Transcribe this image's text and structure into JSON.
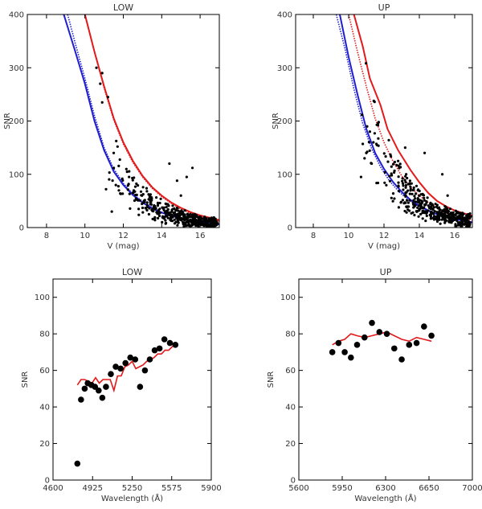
{
  "chart_data": [
    {
      "type": "scatter",
      "title": "LOW",
      "xlabel": "V (mag)",
      "ylabel": "SNR",
      "xlim": [
        7,
        17
      ],
      "ylim": [
        0,
        400
      ],
      "xticks": [
        8,
        10,
        12,
        14,
        16
      ],
      "yticks": [
        0,
        100,
        200,
        300,
        400
      ],
      "scatter_seed": 1,
      "scatter_dense": {
        "xrange": [
          11.0,
          16.9
        ],
        "n": 430
      },
      "scatter_sparse": [
        [
          10.6,
          300
        ],
        [
          10.8,
          270
        ],
        [
          10.9,
          290
        ],
        [
          11.2,
          245
        ],
        [
          10.9,
          235
        ],
        [
          11.7,
          152
        ],
        [
          11.5,
          140
        ],
        [
          12.3,
          95
        ],
        [
          11.1,
          72
        ],
        [
          11.4,
          30
        ],
        [
          15.6,
          112
        ],
        [
          14.4,
          120
        ],
        [
          15.3,
          95
        ],
        [
          14.8,
          88
        ],
        [
          15.0,
          60
        ]
      ],
      "lines": [
        {
          "color": "#e31a1c",
          "style": "solid",
          "points": [
            [
              10.0,
              400
            ],
            [
              10.5,
              330
            ],
            [
              11.0,
              265
            ],
            [
              11.5,
              205
            ],
            [
              12.0,
              160
            ],
            [
              12.5,
              125
            ],
            [
              13.0,
              97
            ],
            [
              13.5,
              76
            ],
            [
              14.0,
              60
            ],
            [
              14.5,
              47
            ],
            [
              15.0,
              37
            ],
            [
              15.5,
              29
            ],
            [
              16.0,
              23
            ],
            [
              17.0,
              14
            ]
          ]
        },
        {
          "color": "#e31a1c",
          "style": "dotted",
          "points": [
            [
              10.0,
              400
            ],
            [
              10.5,
              330
            ],
            [
              11.0,
              262
            ],
            [
              11.5,
              202
            ],
            [
              12.0,
              157
            ],
            [
              12.5,
              122
            ],
            [
              13.0,
              95
            ],
            [
              13.5,
              74
            ],
            [
              14.0,
              58
            ],
            [
              14.5,
              45
            ],
            [
              15.0,
              35
            ],
            [
              15.5,
              27
            ],
            [
              16.0,
              21
            ],
            [
              17.0,
              12
            ]
          ]
        },
        {
          "color": "#1f1fd0",
          "style": "solid",
          "points": [
            [
              8.9,
              400
            ],
            [
              9.5,
              330
            ],
            [
              10.0,
              270
            ],
            [
              10.5,
              200
            ],
            [
              11.0,
              145
            ],
            [
              11.5,
              105
            ],
            [
              12.0,
              80
            ],
            [
              12.5,
              61
            ],
            [
              13.0,
              47
            ],
            [
              13.5,
              36
            ],
            [
              14.0,
              28
            ],
            [
              14.5,
              22
            ],
            [
              15.0,
              17
            ],
            [
              15.5,
              13
            ],
            [
              16.0,
              10
            ],
            [
              17.0,
              6
            ]
          ]
        },
        {
          "color": "#1f1fd0",
          "style": "dotted",
          "points": [
            [
              9.1,
              400
            ],
            [
              9.5,
              345
            ],
            [
              10.0,
              280
            ],
            [
              10.5,
              210
            ],
            [
              11.0,
              150
            ],
            [
              11.5,
              110
            ],
            [
              12.0,
              83
            ],
            [
              12.5,
              63
            ],
            [
              13.0,
              49
            ],
            [
              13.5,
              38
            ],
            [
              14.0,
              29
            ],
            [
              14.5,
              23
            ],
            [
              15.0,
              18
            ],
            [
              15.5,
              14
            ],
            [
              16.0,
              11
            ],
            [
              17.0,
              7
            ]
          ]
        }
      ]
    },
    {
      "type": "scatter",
      "title": "UP",
      "xlabel": "V (mag)",
      "ylabel": "SNR",
      "xlim": [
        7,
        17
      ],
      "ylim": [
        0,
        400
      ],
      "xticks": [
        8,
        10,
        12,
        14,
        16
      ],
      "yticks": [
        0,
        100,
        200,
        300,
        400
      ],
      "scatter_seed": 2,
      "scatter_dense": {
        "xrange": [
          10.6,
          16.9
        ],
        "n": 430
      },
      "scatter_sparse": [
        [
          11.2,
          180
        ],
        [
          11.4,
          160
        ],
        [
          11.6,
          155
        ],
        [
          11.0,
          140
        ],
        [
          10.9,
          130
        ],
        [
          11.3,
          120
        ],
        [
          12.8,
          125
        ],
        [
          13.2,
          150
        ],
        [
          14.3,
          140
        ],
        [
          15.3,
          100
        ],
        [
          15.6,
          60
        ],
        [
          10.7,
          95
        ]
      ],
      "lines": [
        {
          "color": "#e31a1c",
          "style": "solid",
          "points": [
            [
              10.3,
              400
            ],
            [
              10.8,
              340
            ],
            [
              11.2,
              280
            ],
            [
              11.8,
              230
            ],
            [
              12.2,
              185
            ],
            [
              12.8,
              145
            ],
            [
              13.5,
              108
            ],
            [
              14.0,
              85
            ],
            [
              14.5,
              65
            ],
            [
              15.0,
              50
            ],
            [
              15.5,
              40
            ],
            [
              16.0,
              32
            ],
            [
              17.0,
              22
            ]
          ]
        },
        {
          "color": "#e31a1c",
          "style": "dotted",
          "points": [
            [
              10.0,
              400
            ],
            [
              10.5,
              330
            ],
            [
              11.0,
              265
            ],
            [
              11.5,
              205
            ],
            [
              12.0,
              160
            ],
            [
              12.5,
              125
            ],
            [
              13.0,
              97
            ],
            [
              13.5,
              76
            ],
            [
              14.0,
              60
            ],
            [
              14.5,
              47
            ],
            [
              15.0,
              37
            ],
            [
              15.5,
              29
            ],
            [
              16.0,
              23
            ],
            [
              17.0,
              14
            ]
          ]
        },
        {
          "color": "#1f1fd0",
          "style": "solid",
          "points": [
            [
              9.5,
              400
            ],
            [
              10.0,
              320
            ],
            [
              10.5,
              250
            ],
            [
              11.0,
              185
            ],
            [
              11.5,
              140
            ],
            [
              12.0,
              110
            ],
            [
              12.5,
              86
            ],
            [
              13.0,
              67
            ],
            [
              13.5,
              52
            ],
            [
              14.0,
              41
            ],
            [
              14.5,
              32
            ],
            [
              15.0,
              25
            ],
            [
              15.5,
              20
            ],
            [
              16.0,
              16
            ],
            [
              17.0,
              10
            ]
          ]
        },
        {
          "color": "#1f1fd0",
          "style": "dotted",
          "points": [
            [
              9.3,
              400
            ],
            [
              9.8,
              335
            ],
            [
              10.3,
              260
            ],
            [
              10.8,
              195
            ],
            [
              11.3,
              148
            ],
            [
              11.8,
              114
            ],
            [
              12.3,
              88
            ],
            [
              12.8,
              69
            ],
            [
              13.3,
              54
            ],
            [
              13.8,
              43
            ],
            [
              14.3,
              34
            ],
            [
              14.8,
              27
            ],
            [
              15.3,
              21
            ],
            [
              15.8,
              17
            ],
            [
              17.0,
              10
            ]
          ]
        }
      ]
    },
    {
      "type": "scatter",
      "title": "LOW",
      "xlabel": "Wavelength (Å)",
      "ylabel": "SNR",
      "xlim": [
        4600,
        5900
      ],
      "ylim": [
        0,
        110
      ],
      "xticks": [
        4600,
        4925,
        5250,
        5575,
        5900
      ],
      "yticks": [
        0,
        20,
        40,
        60,
        80,
        100
      ],
      "points": [
        [
          4800,
          9
        ],
        [
          4830,
          44
        ],
        [
          4860,
          50
        ],
        [
          4885,
          53
        ],
        [
          4915,
          52
        ],
        [
          4945,
          51
        ],
        [
          4975,
          49
        ],
        [
          5005,
          45
        ],
        [
          5035,
          51
        ],
        [
          5075,
          58
        ],
        [
          5115,
          62
        ],
        [
          5155,
          61
        ],
        [
          5195,
          64
        ],
        [
          5235,
          67
        ],
        [
          5275,
          66
        ],
        [
          5315,
          51
        ],
        [
          5355,
          60
        ],
        [
          5395,
          66
        ],
        [
          5435,
          71
        ],
        [
          5475,
          72
        ],
        [
          5515,
          77
        ],
        [
          5560,
          75
        ],
        [
          5605,
          74
        ]
      ],
      "line": {
        "color": "#e31a1c",
        "points": [
          [
            4800,
            52
          ],
          [
            4830,
            55
          ],
          [
            4860,
            55
          ],
          [
            4890,
            54
          ],
          [
            4920,
            53
          ],
          [
            4950,
            56
          ],
          [
            4980,
            53
          ],
          [
            5010,
            55
          ],
          [
            5040,
            55
          ],
          [
            5070,
            55
          ],
          [
            5100,
            49
          ],
          [
            5130,
            57
          ],
          [
            5160,
            57
          ],
          [
            5190,
            62
          ],
          [
            5220,
            63
          ],
          [
            5250,
            65
          ],
          [
            5280,
            61
          ],
          [
            5310,
            62
          ],
          [
            5340,
            63
          ],
          [
            5370,
            65
          ],
          [
            5400,
            66
          ],
          [
            5430,
            67
          ],
          [
            5460,
            69
          ],
          [
            5490,
            69
          ],
          [
            5520,
            71
          ],
          [
            5550,
            71
          ],
          [
            5580,
            73
          ],
          [
            5605,
            75
          ]
        ]
      }
    },
    {
      "type": "scatter",
      "title": "UP",
      "xlabel": "Wavelength (Å)",
      "ylabel": "SNR",
      "xlim": [
        5600,
        7000
      ],
      "ylim": [
        0,
        110
      ],
      "xticks": [
        5600,
        5950,
        6300,
        6650,
        7000
      ],
      "yticks": [
        0,
        20,
        40,
        60,
        80,
        100
      ],
      "points": [
        [
          5870,
          70
        ],
        [
          5920,
          75
        ],
        [
          5970,
          70
        ],
        [
          6020,
          67
        ],
        [
          6070,
          74
        ],
        [
          6130,
          78
        ],
        [
          6190,
          86
        ],
        [
          6250,
          81
        ],
        [
          6310,
          80
        ],
        [
          6370,
          72
        ],
        [
          6430,
          66
        ],
        [
          6490,
          74
        ],
        [
          6550,
          75
        ],
        [
          6610,
          84
        ],
        [
          6670,
          79
        ]
      ],
      "line": {
        "color": "#e31a1c",
        "points": [
          [
            5870,
            74
          ],
          [
            5920,
            76
          ],
          [
            5970,
            77
          ],
          [
            6020,
            80
          ],
          [
            6070,
            79
          ],
          [
            6130,
            78
          ],
          [
            6190,
            79
          ],
          [
            6250,
            80
          ],
          [
            6310,
            81
          ],
          [
            6370,
            79
          ],
          [
            6430,
            77
          ],
          [
            6490,
            76
          ],
          [
            6550,
            78
          ],
          [
            6610,
            77
          ],
          [
            6670,
            76
          ]
        ]
      }
    }
  ]
}
